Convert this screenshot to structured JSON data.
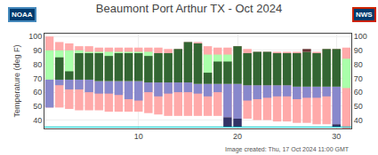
{
  "chart_data": {
    "type": "bar",
    "title": "Beaumont Port Arthur TX - Oct 2024",
    "ylabel": "Temperature (deg F)",
    "footer": "Image created: Thu, 17 Oct 2024 11:00 GMT",
    "annotations": [
      "NOAA",
      "NWS"
    ],
    "x": [
      1,
      2,
      3,
      4,
      5,
      6,
      7,
      8,
      9,
      10,
      11,
      12,
      13,
      14,
      15,
      16,
      17,
      18,
      19,
      20,
      21,
      22,
      23,
      24,
      25,
      26,
      27,
      28,
      29,
      30,
      31
    ],
    "xlim": [
      0.5,
      31.5
    ],
    "xticks": [
      10,
      20,
      30
    ],
    "ylim": [
      34,
      102
    ],
    "yticks": [
      40,
      50,
      60,
      70,
      80,
      90,
      100
    ],
    "y2lim": [
      34,
      102
    ],
    "y2ticks": [
      40,
      50,
      60,
      70,
      80,
      90,
      100
    ],
    "grid": true,
    "reference_line": {
      "y": 35,
      "color": "#00cccc"
    },
    "series": [
      {
        "color": "#ffaaaa",
        "low": [
          49,
          49,
          48,
          47,
          47,
          47,
          46,
          46,
          46,
          46,
          45,
          44,
          43,
          43,
          43,
          43,
          43,
          43,
          42,
          41,
          41,
          40,
          40,
          39,
          39,
          38,
          38,
          37,
          37,
          37,
          34
        ],
        "high": [
          100,
          96,
          95,
          93,
          93,
          92,
          92,
          92,
          92,
          92,
          92,
          92,
          91,
          91,
          96,
          96,
          93,
          92,
          92,
          93,
          91,
          89,
          89,
          89,
          89,
          89,
          89,
          89,
          91,
          91,
          92
        ]
      },
      {
        "color": "#aaffaa",
        "low": [
          69,
          69,
          69,
          69,
          69,
          68,
          68,
          68,
          68,
          68,
          67,
          67,
          67,
          67,
          67,
          66,
          66,
          66,
          66,
          66,
          65,
          65,
          65,
          65,
          65,
          64,
          64,
          64,
          64,
          64,
          63
        ],
        "high": [
          90,
          90,
          90,
          90,
          89,
          89,
          89,
          89,
          89,
          89,
          89,
          88,
          88,
          88,
          88,
          88,
          87,
          87,
          87,
          87,
          87,
          86,
          86,
          86,
          86,
          85,
          85,
          85,
          85,
          84,
          84
        ]
      },
      {
        "color": "#8888cc",
        "low": [
          49,
          65,
          62,
          62,
          60,
          59,
          59,
          58,
          55,
          54,
          60,
          57,
          59,
          60,
          60,
          59,
          57,
          60,
          42,
          41,
          54,
          55,
          56,
          57,
          57,
          55,
          56,
          56,
          57,
          37,
          null
        ],
        "high": [
          69,
          69,
          69,
          69,
          69,
          68,
          68,
          68,
          68,
          68,
          67,
          67,
          67,
          67,
          67,
          66,
          66,
          66,
          66,
          66,
          65,
          65,
          65,
          65,
          65,
          64,
          64,
          64,
          64,
          64,
          null
        ]
      },
      {
        "color": "#333366",
        "low": [
          null,
          null,
          null,
          null,
          null,
          null,
          null,
          null,
          null,
          null,
          null,
          null,
          null,
          null,
          null,
          null,
          null,
          null,
          35,
          35,
          null,
          null,
          null,
          null,
          null,
          null,
          null,
          null,
          null,
          35,
          null
        ],
        "high": [
          null,
          null,
          null,
          null,
          null,
          null,
          null,
          null,
          null,
          null,
          null,
          null,
          null,
          null,
          null,
          null,
          null,
          null,
          42,
          41,
          null,
          null,
          null,
          null,
          null,
          null,
          null,
          null,
          null,
          37,
          null
        ]
      },
      {
        "color": "#336633",
        "low": [
          null,
          69,
          69,
          69,
          69,
          68,
          68,
          68,
          68,
          68,
          67,
          67,
          67,
          67,
          67,
          66,
          66,
          66,
          66,
          66,
          65,
          65,
          65,
          65,
          65,
          64,
          64,
          64,
          64,
          64,
          null
        ],
        "high": [
          null,
          85,
          75,
          88,
          88,
          88,
          86,
          88,
          88,
          88,
          86,
          88,
          88,
          91,
          96,
          95,
          74,
          82,
          82,
          93,
          88,
          89,
          89,
          88,
          88,
          88,
          89,
          88,
          91,
          91,
          null
        ]
      },
      {
        "color": "#663333",
        "low": [
          null,
          null,
          null,
          null,
          null,
          null,
          null,
          null,
          null,
          null,
          null,
          null,
          null,
          null,
          null,
          null,
          null,
          null,
          null,
          null,
          null,
          null,
          null,
          null,
          null,
          null,
          89,
          null,
          null,
          null,
          null
        ],
        "high": [
          null,
          null,
          null,
          null,
          null,
          null,
          null,
          null,
          null,
          null,
          null,
          null,
          null,
          null,
          null,
          null,
          null,
          null,
          null,
          null,
          null,
          null,
          null,
          null,
          null,
          null,
          91,
          null,
          null,
          null,
          null
        ]
      }
    ]
  }
}
